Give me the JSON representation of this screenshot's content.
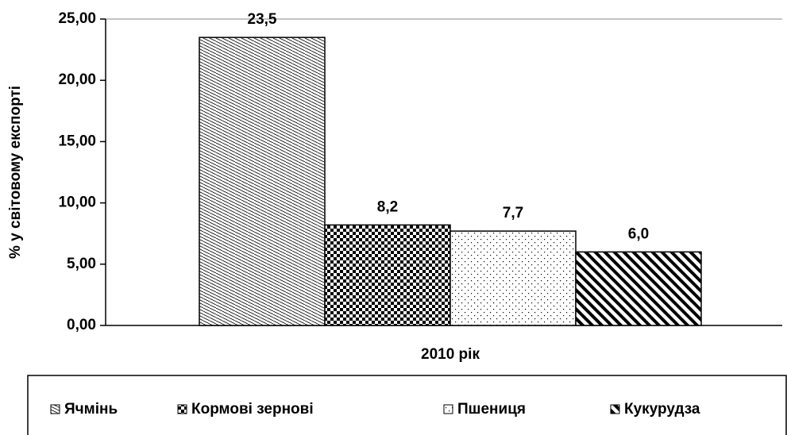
{
  "chart_data": {
    "type": "bar",
    "ylabel": "% у світовому експорті",
    "categories": [
      "2010 рік"
    ],
    "series": [
      {
        "name": "Ячмінь",
        "color": "#000000",
        "pattern": "hatch-dense",
        "values": [
          23.5
        ],
        "value_labels": [
          "23,5"
        ]
      },
      {
        "name": "Кормові зернові",
        "color": "#000000",
        "pattern": "checker",
        "values": [
          8.2
        ],
        "value_labels": [
          "8,2"
        ]
      },
      {
        "name": "Пшениця",
        "color": "#000000",
        "pattern": "dots",
        "values": [
          7.7
        ],
        "value_labels": [
          "7,7"
        ]
      },
      {
        "name": "Кукурудза",
        "color": "#000000",
        "pattern": "wide-diagonal",
        "values": [
          6.0
        ],
        "value_labels": [
          "6,0"
        ]
      }
    ],
    "ylim": [
      0,
      25
    ],
    "yticks": [
      {
        "value": 0,
        "label": "0,00"
      },
      {
        "value": 5,
        "label": "5,00"
      },
      {
        "value": 10,
        "label": "10,00"
      },
      {
        "value": 15,
        "label": "15,00"
      },
      {
        "value": 20,
        "label": "20,00"
      },
      {
        "value": 25,
        "label": "25,00"
      }
    ],
    "legend": "bottom"
  }
}
